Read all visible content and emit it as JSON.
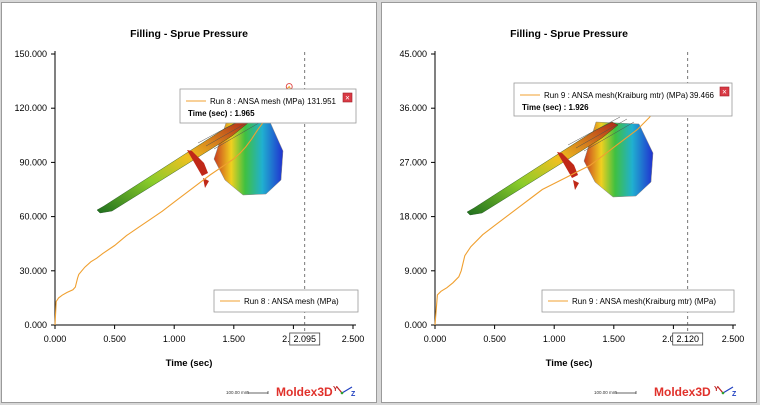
{
  "colors": {
    "curve": "#f0a030",
    "axis": "#000000",
    "marker": "#e04040",
    "brand": "#e0312b",
    "cursor": "#555555"
  },
  "brand_text": "Moldex3D",
  "scale_label": "100.00 mm",
  "chart_data": [
    {
      "type": "line",
      "title": "Filling - Sprue Pressure",
      "xlabel": "Time (sec)",
      "ylabel": "",
      "xlim": [
        0,
        2.5
      ],
      "ylim": [
        0,
        150
      ],
      "xticks": [
        "0.000",
        "0.500",
        "1.000",
        "1.500",
        "2.000",
        "2.500"
      ],
      "yticks": [
        "0.000",
        "30.000",
        "60.000",
        "90.000",
        "120.000",
        "150.000"
      ],
      "cursor_x": 2.095,
      "cursor_label": "2.095",
      "series": [
        {
          "name": "Run 8 : ANSA mesh (MPa)",
          "x": [
            0.0,
            0.01,
            0.03,
            0.06,
            0.1,
            0.15,
            0.17,
            0.19,
            0.2,
            0.25,
            0.3,
            0.35,
            0.4,
            0.5,
            0.6,
            0.7,
            0.8,
            0.9,
            1.0,
            1.1,
            1.2,
            1.3,
            1.4,
            1.5,
            1.55,
            1.6,
            1.65,
            1.7,
            1.75,
            1.8,
            1.85,
            1.9,
            1.92,
            1.965,
            2.0,
            2.05,
            2.095
          ],
          "y": [
            0.0,
            13.0,
            15.0,
            16.5,
            18.0,
            19.5,
            21.0,
            26.0,
            28.0,
            32.0,
            35.0,
            37.0,
            39.5,
            44.0,
            49.5,
            54.0,
            58.5,
            63.0,
            68.0,
            73.0,
            78.0,
            83.0,
            87.5,
            92.0,
            95.0,
            98.5,
            103.0,
            108.0,
            112.5,
            118.0,
            123.0,
            126.5,
            129.0,
            131.951,
            128.0,
            127.0,
            126.0
          ]
        }
      ],
      "tooltip": {
        "series_line": "Run 8 : ANSA mesh (MPa)",
        "value": "131.951",
        "time_line": "Time (sec) : 1.965"
      },
      "legend_position": "bottom-right"
    },
    {
      "type": "line",
      "title": "Filling - Sprue Pressure",
      "xlabel": "Time (sec)",
      "ylabel": "",
      "xlim": [
        0,
        2.5
      ],
      "ylim": [
        0,
        45
      ],
      "xticks": [
        "0.000",
        "0.500",
        "1.000",
        "1.500",
        "2.000",
        "2.500"
      ],
      "yticks": [
        "0.000",
        "9.000",
        "18.000",
        "27.000",
        "36.000",
        "45.000"
      ],
      "cursor_x": 2.12,
      "cursor_label": "2.120",
      "series": [
        {
          "name": "Run 9 : ANSA mesh(Kraiburg mtr) (MPa)",
          "x": [
            0.0,
            0.02,
            0.05,
            0.1,
            0.15,
            0.2,
            0.22,
            0.25,
            0.3,
            0.4,
            0.5,
            0.6,
            0.7,
            0.8,
            0.9,
            1.0,
            1.1,
            1.2,
            1.3,
            1.4,
            1.5,
            1.6,
            1.7,
            1.8,
            1.85,
            1.9,
            1.926,
            1.95,
            2.0,
            2.05,
            2.1,
            2.12
          ],
          "y": [
            0.0,
            5.0,
            5.6,
            6.2,
            7.0,
            8.0,
            9.0,
            11.5,
            13.0,
            15.0,
            16.5,
            18.0,
            19.5,
            21.0,
            22.5,
            23.5,
            24.5,
            25.5,
            26.5,
            28.0,
            29.5,
            31.0,
            32.5,
            34.5,
            36.0,
            37.8,
            39.466,
            38.5,
            38.0,
            37.5,
            36.8,
            36.5
          ]
        }
      ],
      "tooltip": {
        "series_line": "Run 9 : ANSA mesh(Kraiburg mtr) (MPa)",
        "value": "39.466",
        "time_line": "Time (sec) : 1.926"
      },
      "legend_position": "bottom-right"
    }
  ]
}
